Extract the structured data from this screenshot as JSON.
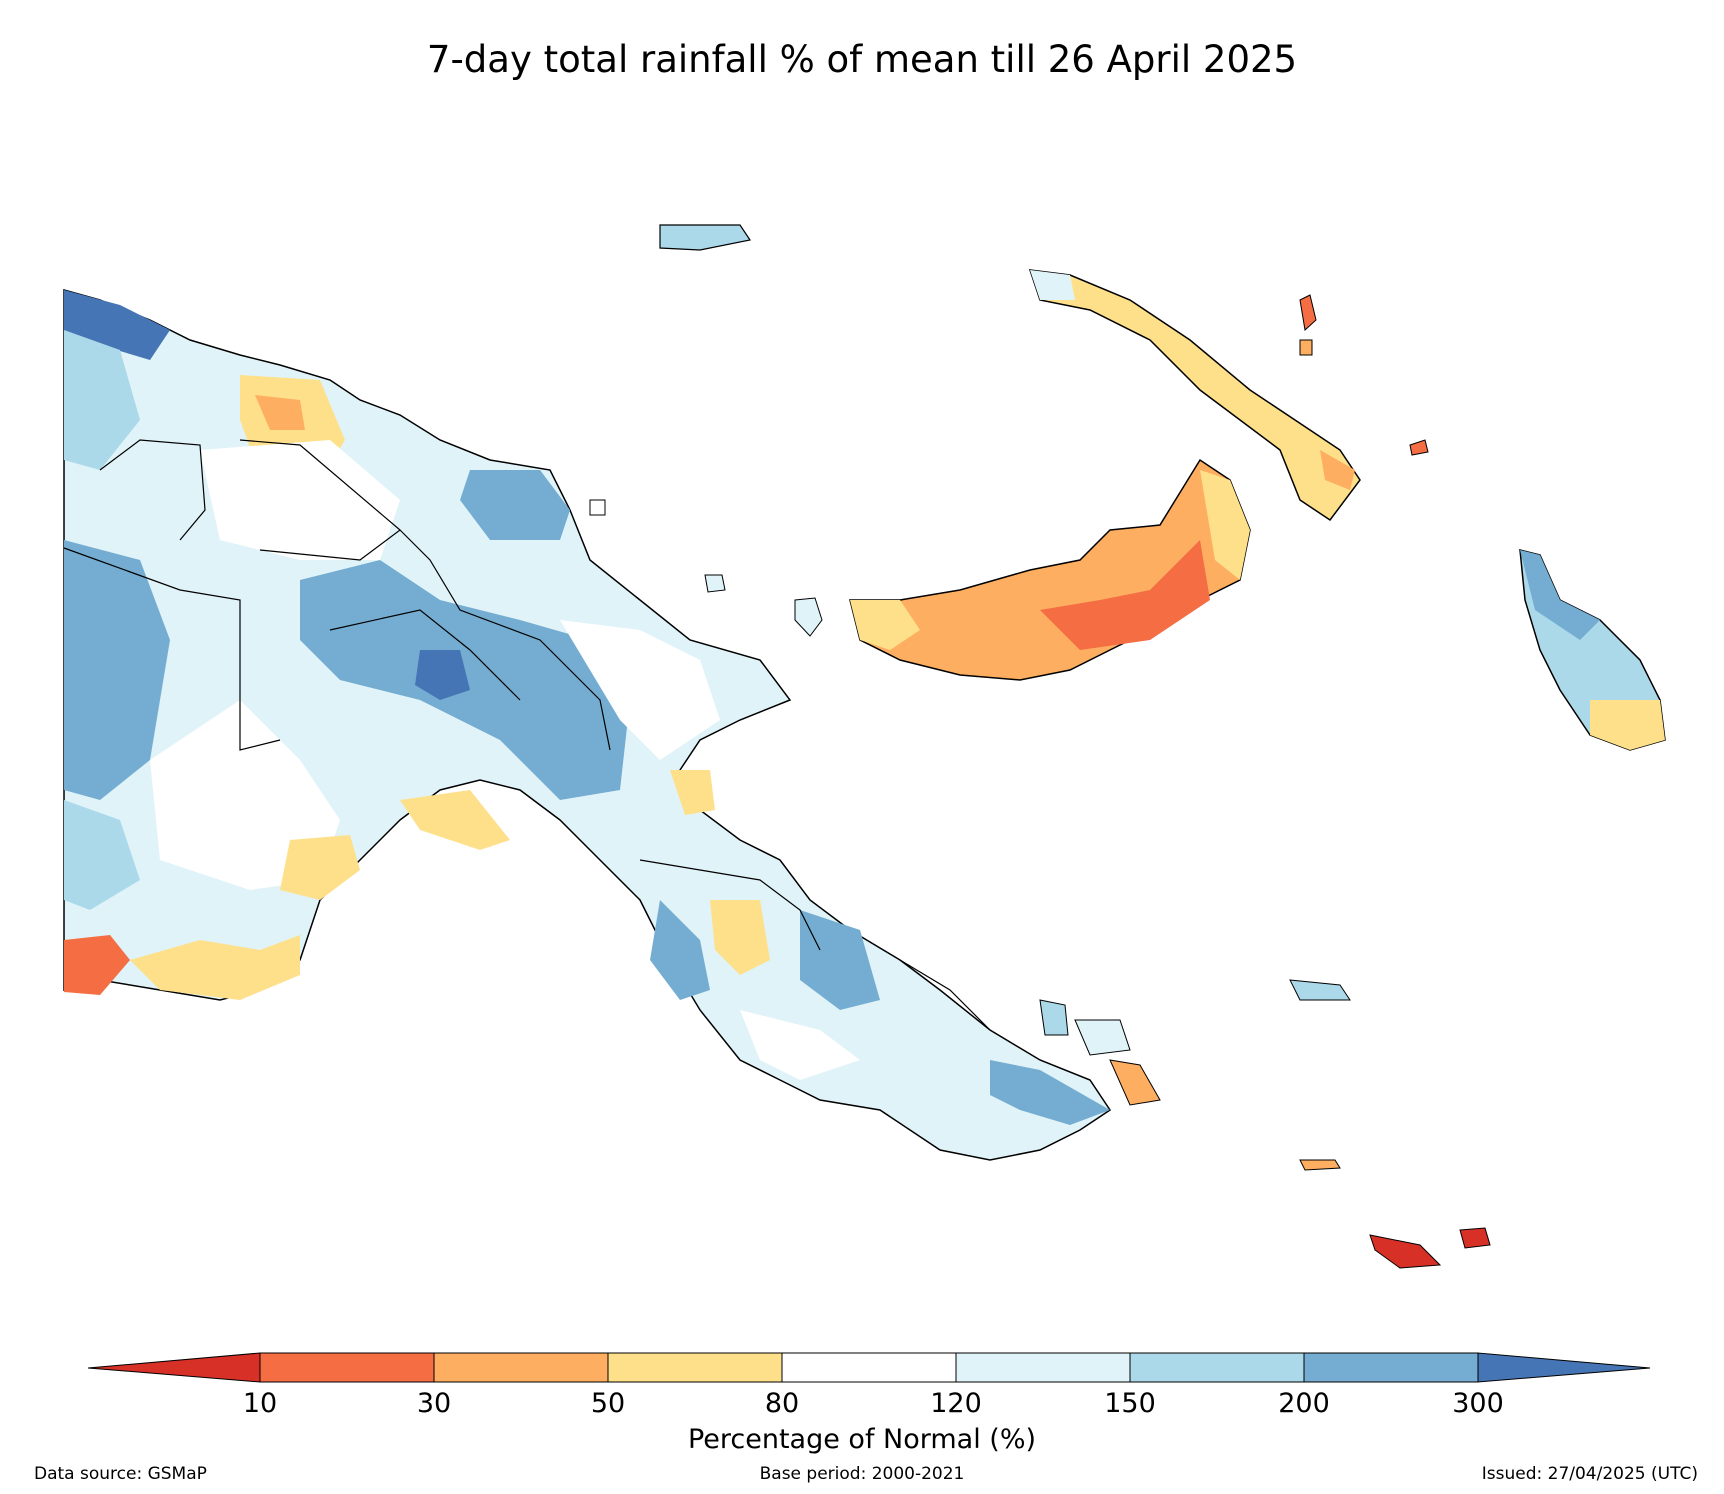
{
  "title": "7-day total rainfall % of mean till 26 April 2025",
  "legend": {
    "label": "Percentage of Normal (%)",
    "ticks": [
      "10",
      "30",
      "50",
      "80",
      "120",
      "150",
      "200",
      "300"
    ],
    "colors": [
      "#d73027",
      "#f46d43",
      "#fdae61",
      "#fee08b",
      "#ffffff",
      "#e0f3f8",
      "#abd9e9",
      "#74add1",
      "#4575b4"
    ]
  },
  "footer": {
    "source": "Data source: GSMaP",
    "base_period": "Base period: 2000-2021",
    "issued": "Issued: 27/04/2025 (UTC)"
  }
}
